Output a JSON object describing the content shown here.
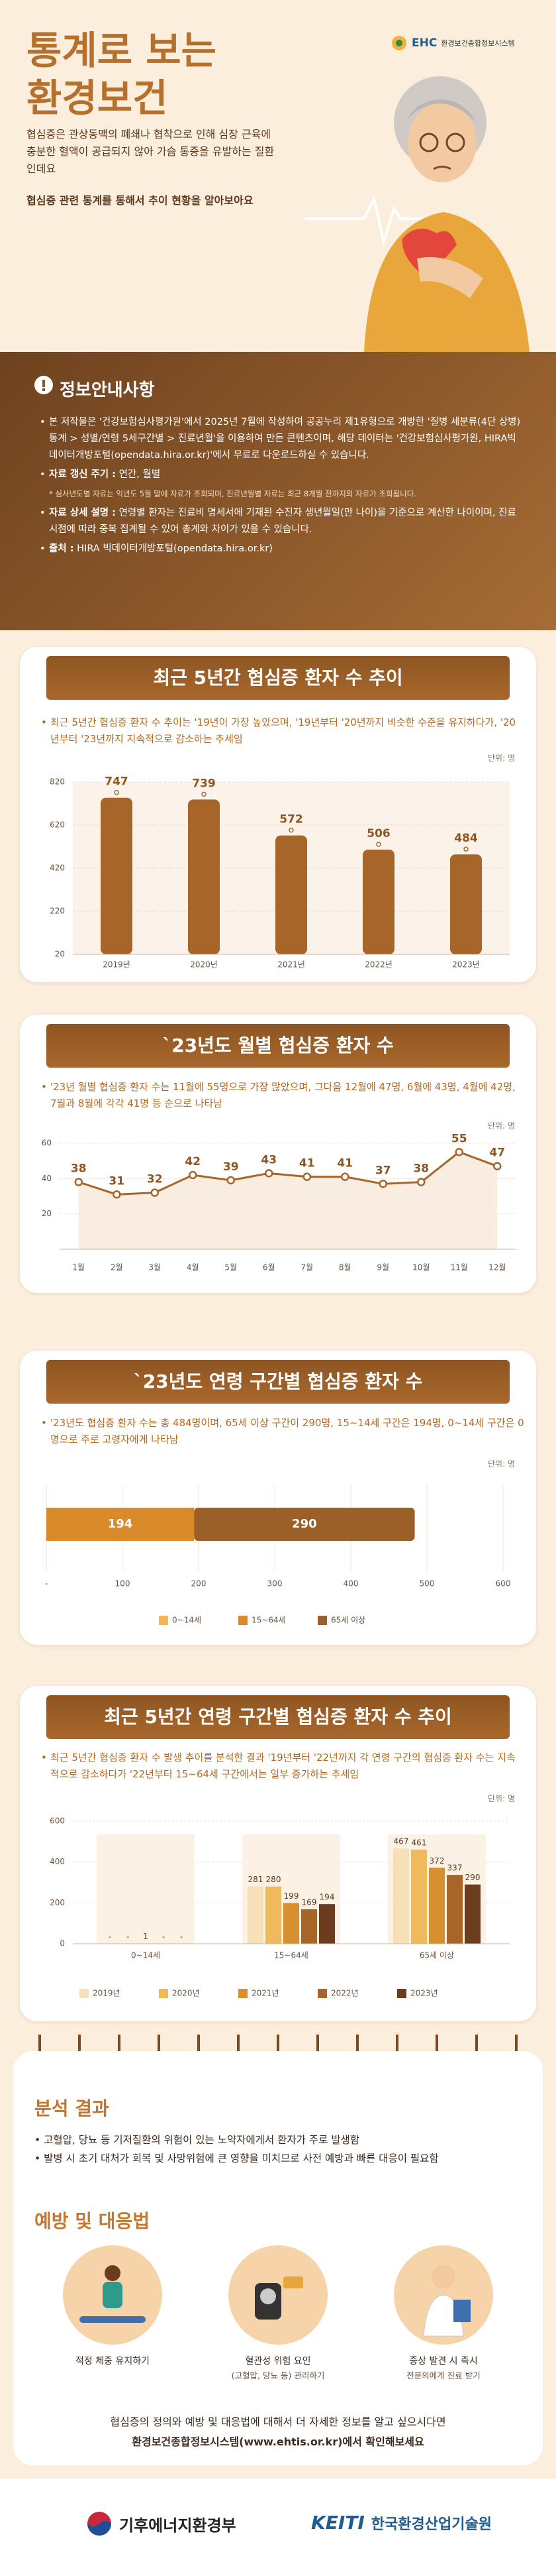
{
  "header": {
    "title_lines": [
      "통계로 보는",
      "환경보건"
    ],
    "logo": "EHC",
    "logo_text": "환경보건종합정보시스템",
    "intro": [
      "협심증은 관상동맥의 폐쇄나 협착으로 인해 심장 근육에 충분한 혈액이 공급되지 않아 가슴 통증을 유발하는 질환인데요",
      "협심증 관련 통계를 통해서 추이 현황을 알아보아요"
    ]
  },
  "info": {
    "title": "정보안내사항",
    "items": [
      {
        "text": "본 저작물은 '건강보험심사평가원'에서 2025년 7월에 작성하여 공공누리 제1유형으로 개방한 '질병 세분류(4단 상병)통계 > 성별/연령 5세구간별 > 진료년월'을 이용하여 만든 콘텐츠이며, 해당 데이터는 '건강보험심사평가원, HIRA빅데이터개방포털(opendata.hira.or.kr)'에서 무료로 다운로드하실 수 있습니다."
      },
      {
        "label": "자료 갱신 주기 :",
        "text": "연간, 월별",
        "note": "* 심사년도별 자료는 익년도 5월 말에 자료가 조회되며, 진료년월별 자료는 최근 8개월 전까지의 자료가 조회됩니다."
      },
      {
        "label": "자료 상세 설명 :",
        "text": "연령별 환자는 진료비 명세서에 기재된 수진자 생년월일(만 나이)을 기준으로 계산한 나이이며, 진료시점에 따라 중복 집계될 수 있어 총계와 차이가 있을 수 있습니다."
      },
      {
        "label": "출처 :",
        "text": "HIRA 빅데이터개방포털(opendata.hira.or.kr)"
      }
    ]
  },
  "chart_data": [
    {
      "type": "bar",
      "title": "최근 5년간 협심증 환자 수 추이",
      "description": "최근 5년간 협심증 환자 수 추이는 '19년이 가장 높았으며, '19년부터 '20년까지 비슷한 수준을 유지하다가, '20년부터 '23년까지 지속적으로 감소하는 추세임",
      "unit": "단위: 명",
      "categories": [
        "2019년",
        "2020년",
        "2021년",
        "2022년",
        "2023년"
      ],
      "values": [
        747,
        739,
        572,
        506,
        484
      ],
      "color": "#a8652a",
      "ylim": [
        20,
        820
      ],
      "yticks": [
        20,
        220,
        420,
        620,
        820
      ],
      "grid": true
    },
    {
      "type": "line",
      "title": "`23년도 월별 협심증 환자 수",
      "description": "'23년 월별 협심증 환자 수는 11월에 55명으로 가장 많았으며, 그다음 12월에 47명, 6월에 43명, 4월에 42명, 7월과 8월에 각각 41명 등 순으로 나타남",
      "unit": "단위: 명",
      "categories": [
        "1월",
        "2월",
        "3월",
        "4월",
        "5월",
        "6월",
        "7월",
        "8월",
        "9월",
        "10월",
        "11월",
        "12월"
      ],
      "values": [
        38,
        31,
        32,
        42,
        39,
        43,
        41,
        41,
        37,
        38,
        55,
        47
      ],
      "color": "#a8652a",
      "ylim": [
        0,
        60
      ],
      "yticks": [
        20,
        40,
        60
      ],
      "grid": true
    },
    {
      "type": "bar",
      "orientation": "horizontal",
      "stacked": true,
      "title": "`23년도 연령 구간별 협심증 환자 수",
      "description": "'23년도 협심증 환자 수는 총 484명이며, 65세 이상 구간이 290명, 15~14세 구간은 194명, 0~14세 구간은 0명으로 주로 고령자에게 나타남",
      "unit": "단위: 명",
      "series": [
        {
          "name": "0~14세",
          "color": "#f2b55c",
          "values": [
            0
          ]
        },
        {
          "name": "15~64세",
          "color": "#d98a2b",
          "values": [
            194
          ]
        },
        {
          "name": "65세 이상",
          "color": "#9a6027",
          "values": [
            290
          ]
        }
      ],
      "xlim": [
        0,
        600
      ],
      "xticks": [
        {
          "value": 0,
          "label": "-"
        },
        100,
        200,
        300,
        400,
        500,
        600
      ],
      "grid": true
    },
    {
      "type": "bar",
      "grouped": true,
      "title": "최근 5년간 연령 구간별 협심증 환자 수 추이",
      "description": "최근 5년간 협심증 환자 수 발생 추이를 분석한 결과 '19년부터 '22년까지 각 연령 구간의 협심증 환자 수는 지속적으로 감소하다가 '22년부터 15~64세 구간에서는 일부 증가하는 추세임",
      "unit": "단위: 명",
      "categories": [
        "0~14세",
        "15~64세",
        "65세 이상"
      ],
      "series": [
        {
          "name": "2019년",
          "color": "#f7e0b8",
          "values": [
            0,
            281,
            467
          ],
          "value_labels": [
            "-",
            "281",
            "467"
          ]
        },
        {
          "name": "2020년",
          "color": "#f0b95c",
          "values": [
            0,
            280,
            461
          ],
          "value_labels": [
            "-",
            "280",
            "461"
          ]
        },
        {
          "name": "2021년",
          "color": "#d6902f",
          "values": [
            1,
            199,
            372
          ],
          "value_labels": [
            "1",
            "199",
            "372"
          ]
        },
        {
          "name": "2022년",
          "color": "#a8652a",
          "values": [
            0,
            169,
            337
          ],
          "value_labels": [
            "-",
            "169",
            "337"
          ]
        },
        {
          "name": "2023년",
          "color": "#6b3d1e",
          "values": [
            0,
            194,
            290
          ],
          "value_labels": [
            "-",
            "194",
            "290"
          ]
        }
      ],
      "ylim": [
        0,
        600
      ],
      "yticks": [
        0,
        200,
        400,
        600
      ],
      "grid": true
    }
  ],
  "analysis": {
    "title": "분석 결과",
    "items": [
      "고혈압, 당뇨 등 기저질환의 위험이 있는 노약자에게서 환자가 주로 발생함",
      "발병 시 초기 대처가 회복 및 사망위험에 큰 영향을 미치므로 사전 예방과 빠른 대응이 필요함"
    ]
  },
  "prevention": {
    "title": "예방 및 대응법",
    "items": [
      {
        "lines": [
          "적정 체중 유지하기"
        ]
      },
      {
        "lines": [
          "혈관성 위험 요인",
          "(고혈압, 당뇨 등) 관리하기"
        ]
      },
      {
        "lines": [
          "증상 발견 시 즉시",
          "전문의에게 진료 받기"
        ]
      }
    ]
  },
  "closing": [
    "협심증의 정의와 예방 및 대응법에 대해서 더 자세한 정보를 알고 싶으시다면",
    "환경보건종합정보시스템(www.ehtis.or.kr)에서 확인해보세요"
  ],
  "footer": {
    "ministry": "기후에너지환경부",
    "keiti": "KEITI",
    "keiti_name": "한국환경산업기술원"
  }
}
